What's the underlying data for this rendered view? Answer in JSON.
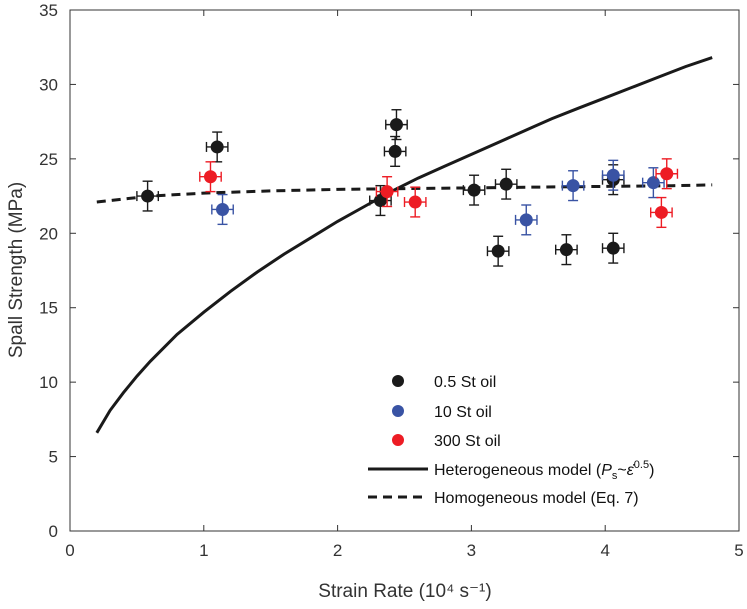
{
  "chart_data": {
    "type": "scatter",
    "xlabel": "Strain Rate (10⁴ s⁻¹)",
    "ylabel": "Spall Strength (MPa)",
    "xlim": [
      0,
      5
    ],
    "ylim": [
      0,
      35
    ],
    "xticks": [
      "0",
      "1",
      "2",
      "3",
      "4",
      "5"
    ],
    "yticks": [
      "0",
      "5",
      "10",
      "15",
      "20",
      "25",
      "30",
      "35"
    ],
    "grid": false,
    "legend_position": "bottom-right",
    "series": [
      {
        "name": "0.5 St oil",
        "kind": "points",
        "color": "#1a1a1a",
        "xerr": 0.08,
        "yerr": 1.0,
        "points": [
          {
            "x": 0.58,
            "y": 22.5
          },
          {
            "x": 1.1,
            "y": 25.8
          },
          {
            "x": 2.32,
            "y": 22.2
          },
          {
            "x": 2.43,
            "y": 25.5
          },
          {
            "x": 2.44,
            "y": 27.3
          },
          {
            "x": 3.02,
            "y": 22.9
          },
          {
            "x": 3.2,
            "y": 18.8
          },
          {
            "x": 3.26,
            "y": 23.3
          },
          {
            "x": 3.71,
            "y": 18.9
          },
          {
            "x": 4.06,
            "y": 19.0
          },
          {
            "x": 4.06,
            "y": 23.6
          }
        ]
      },
      {
        "name": "10 St oil",
        "kind": "points",
        "color": "#3953a4",
        "xerr": 0.08,
        "yerr": 1.0,
        "points": [
          {
            "x": 1.14,
            "y": 21.6
          },
          {
            "x": 3.41,
            "y": 20.9
          },
          {
            "x": 3.76,
            "y": 23.2
          },
          {
            "x": 4.06,
            "y": 23.9
          },
          {
            "x": 4.36,
            "y": 23.4
          }
        ]
      },
      {
        "name": "300 St oil",
        "kind": "points",
        "color": "#ed1c24",
        "xerr": 0.08,
        "yerr": 1.0,
        "points": [
          {
            "x": 1.05,
            "y": 23.8
          },
          {
            "x": 2.37,
            "y": 22.8
          },
          {
            "x": 2.58,
            "y": 22.1
          },
          {
            "x": 4.42,
            "y": 21.4
          },
          {
            "x": 4.46,
            "y": 24.0
          }
        ]
      },
      {
        "name": "Heterogeneous model",
        "kind": "solid-line",
        "color": "#1a1a1a",
        "x": [
          0.2,
          0.3,
          0.4,
          0.5,
          0.6,
          0.8,
          1.0,
          1.2,
          1.4,
          1.6,
          1.8,
          2.0,
          2.2,
          2.4,
          2.6,
          2.8,
          3.0,
          3.2,
          3.4,
          3.6,
          3.8,
          4.0,
          4.2,
          4.4,
          4.6,
          4.8
        ],
        "y": [
          6.6,
          8.1,
          9.3,
          10.4,
          11.4,
          13.2,
          14.7,
          16.1,
          17.4,
          18.6,
          19.7,
          20.8,
          21.8,
          22.8,
          23.7,
          24.5,
          25.3,
          26.1,
          26.9,
          27.7,
          28.4,
          29.1,
          29.8,
          30.5,
          31.2,
          31.8
        ]
      },
      {
        "name": "Homogeneous model (Eq. 7)",
        "kind": "dashed-line",
        "color": "#1a1a1a",
        "x": [
          0.2,
          0.6,
          1.0,
          1.5,
          2.0,
          2.5,
          3.0,
          3.5,
          4.0,
          4.5,
          4.8
        ],
        "y": [
          22.1,
          22.5,
          22.7,
          22.85,
          22.95,
          23.0,
          23.05,
          23.1,
          23.15,
          23.2,
          23.25
        ]
      }
    ]
  },
  "legend": {
    "entries": [
      {
        "label": "0.5 St oil",
        "symbol": "dot",
        "color": "#1a1a1a"
      },
      {
        "label": "10 St oil",
        "symbol": "dot",
        "color": "#3953a4"
      },
      {
        "label": "300 St oil",
        "symbol": "dot",
        "color": "#ed1c24"
      },
      {
        "label": "Heterogeneous model (",
        "symbol": "solid",
        "color": "#1a1a1a"
      },
      {
        "label": "Homogeneous model (Eq. 7)",
        "symbol": "dashed",
        "color": "#1a1a1a"
      }
    ],
    "het_formula": {
      "p": "P",
      "sub": "s",
      "tilde": "~",
      "eps": "ε̇",
      "sup": "0.5",
      "close": ")"
    }
  }
}
